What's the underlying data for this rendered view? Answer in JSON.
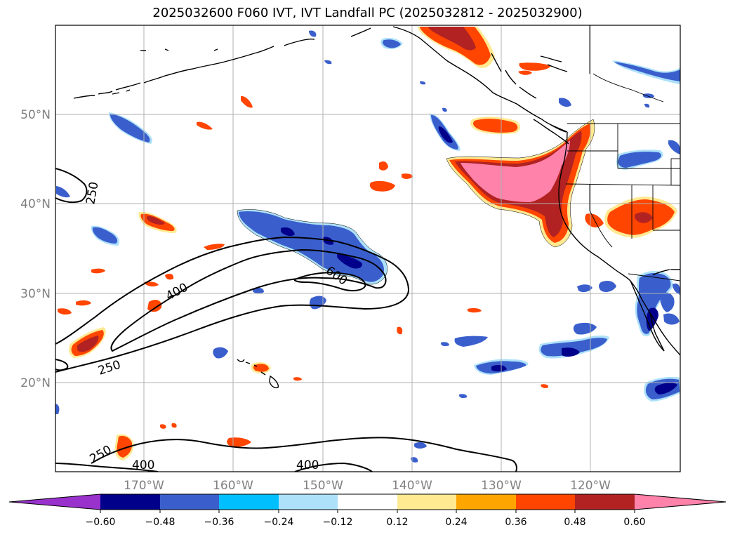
{
  "title": "2025032600 F060 IVT, IVT Landfall PC (2025032812 - 2025032900)",
  "latitude_labels": [
    "50°N",
    "40°N",
    "30°N",
    "20°N"
  ],
  "longitude_labels": [
    "170°W",
    "160°W",
    "150°W",
    "140°W",
    "130°W",
    "120°W"
  ],
  "ivt_contour_labels": [
    "250",
    "400",
    "600",
    "250",
    "250",
    "400",
    "400"
  ],
  "colorbar": {
    "tick_labels": [
      "−0.60",
      "−0.48",
      "−0.36",
      "−0.24",
      "−0.12",
      "0.12",
      "0.24",
      "0.36",
      "0.48",
      "0.60"
    ],
    "colors": [
      "#9932CC",
      "#00008B",
      "#3A5FCD",
      "#00BFFF",
      "#ADE1FA",
      "#FFFFFF",
      "#FFE991",
      "#FFA500",
      "#FF4500",
      "#B22222",
      "#FF82AB"
    ]
  },
  "colors": {
    "land_outline": "#000000",
    "grid": "#b0b0b0",
    "contour": "#000000"
  }
}
